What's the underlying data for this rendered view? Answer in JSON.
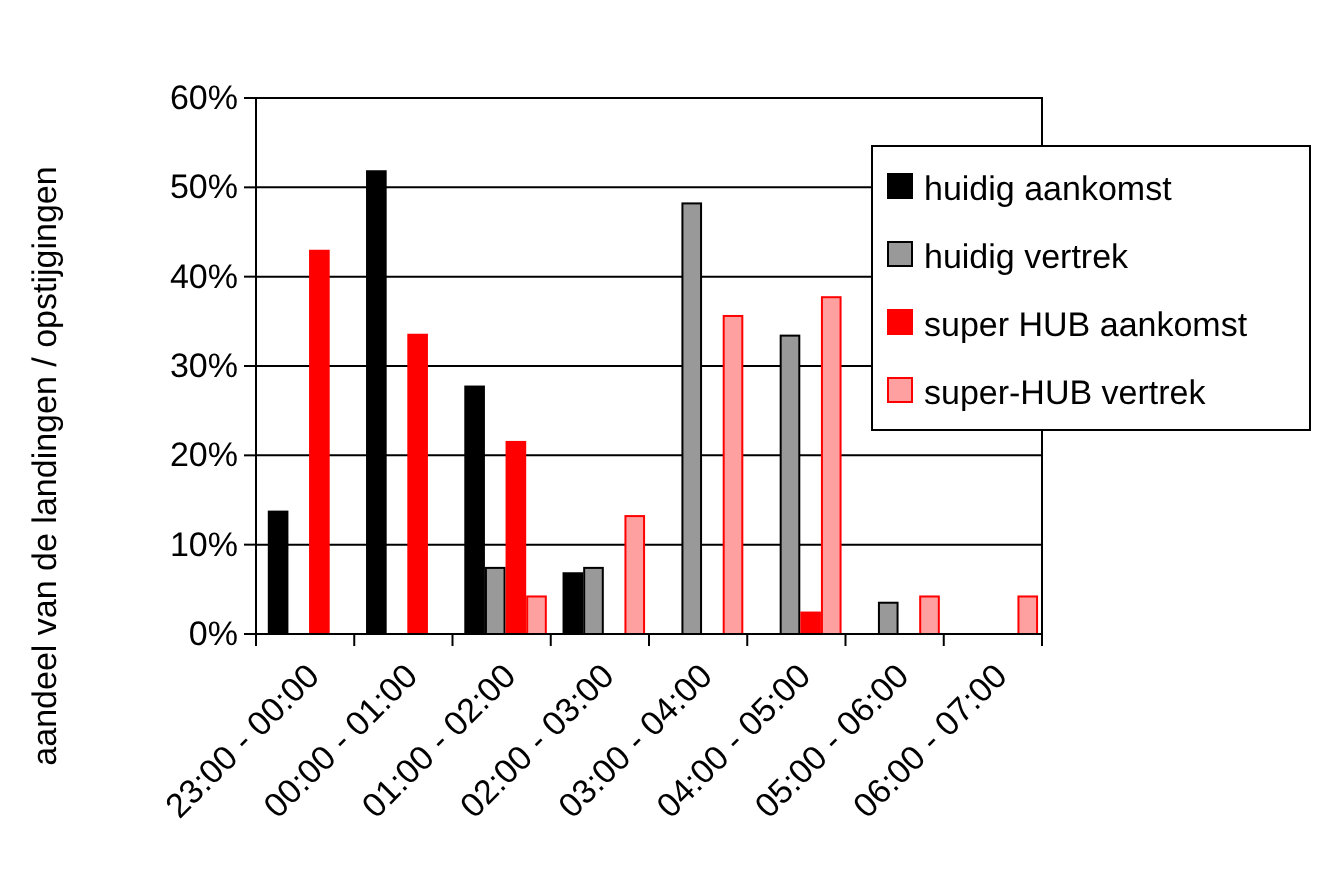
{
  "chart_data": {
    "type": "bar",
    "ylabel": "aandeel van de landingen / opstijgingen",
    "categories": [
      "23:00 - 00:00",
      "00:00 - 01:00",
      "01:00 - 02:00",
      "02:00 - 03:00",
      "03:00 - 04:00",
      "04:00 - 05:00",
      "05:00 - 06:00",
      "06:00 - 07:00"
    ],
    "series": [
      {
        "name": "huidig aankomst",
        "color": "#000000",
        "values": [
          13.7,
          51.8,
          27.7,
          6.8,
          0,
          0,
          0,
          0
        ]
      },
      {
        "name": "huidig vertrek",
        "color": "#999999",
        "values": [
          0,
          0,
          7.4,
          7.4,
          48.2,
          33.4,
          3.5,
          0
        ]
      },
      {
        "name": "super HUB aankomst",
        "color": "#ff0000",
        "values": [
          42.9,
          33.5,
          21.5,
          0,
          0,
          2.4,
          0,
          0
        ]
      },
      {
        "name": "super-HUB vertrek",
        "color": "#ffa0a0",
        "values": [
          0,
          0,
          4.2,
          13.2,
          35.6,
          37.7,
          4.2,
          4.2
        ]
      }
    ],
    "ylim": [
      0,
      60
    ],
    "yticks": [
      {
        "value": 0,
        "label": "0%"
      },
      {
        "value": 10,
        "label": "10%"
      },
      {
        "value": 20,
        "label": "20%"
      },
      {
        "value": 30,
        "label": "30%"
      },
      {
        "value": 40,
        "label": "40%"
      },
      {
        "value": 50,
        "label": "50%"
      },
      {
        "value": 60,
        "label": "60%"
      }
    ],
    "grid": "y",
    "legend": "top right"
  }
}
